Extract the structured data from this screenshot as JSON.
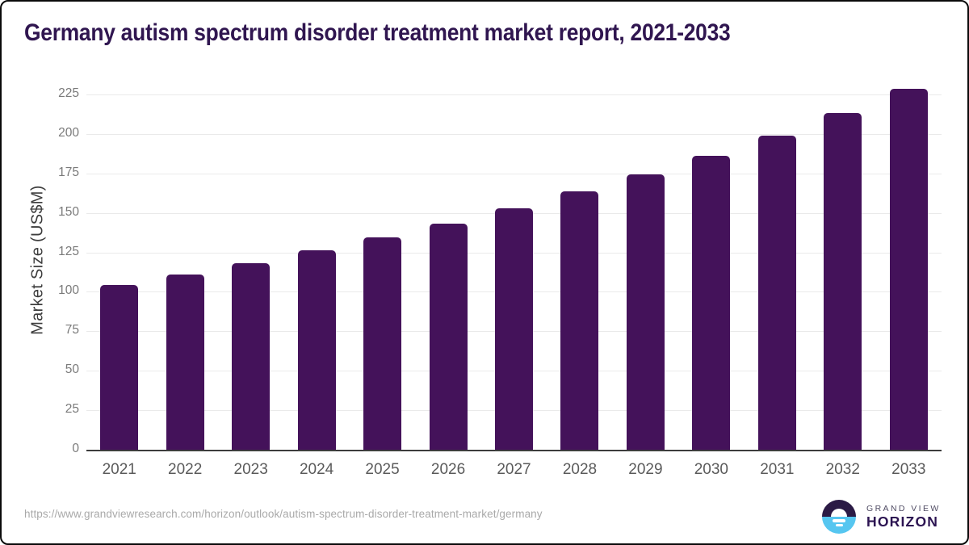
{
  "page": {
    "title": "Germany autism spectrum disorder treatment market report, 2021-2033"
  },
  "chart_data": {
    "type": "bar",
    "title": "Germany autism spectrum disorder treatment market report, 2021-2033",
    "categories": [
      "2021",
      "2022",
      "2023",
      "2024",
      "2025",
      "2026",
      "2027",
      "2028",
      "2029",
      "2030",
      "2031",
      "2032",
      "2033"
    ],
    "values": [
      104.5,
      111.2,
      118.1,
      126.1,
      134.7,
      143.2,
      153.0,
      163.4,
      174.5,
      186.3,
      198.9,
      213.2,
      228.4
    ],
    "xlabel": "",
    "ylabel": "Market Size (US$M)",
    "ylim": [
      0,
      225
    ],
    "yticks": [
      0,
      25,
      50,
      75,
      100,
      125,
      150,
      175,
      200,
      225
    ],
    "grid": true,
    "legend": "none",
    "bar_color": "#44125A"
  },
  "footer": {
    "source_url": "https://www.grandviewresearch.com/horizon/outlook/autism-spectrum-disorder-treatment-market/germany",
    "brand": {
      "top": "GRAND VIEW",
      "bottom": "HORIZON"
    }
  },
  "colors": {
    "bar": "#44125A",
    "title": "#301650",
    "axis": "#3D3D3D",
    "gridline": "#EAEAEA",
    "y_tick_label": "#7A7A7A",
    "x_label": "#5A5A5A",
    "url_text": "#A9A9A9",
    "logo_navy": "#2B1A45",
    "logo_blue": "#56C6F0"
  }
}
